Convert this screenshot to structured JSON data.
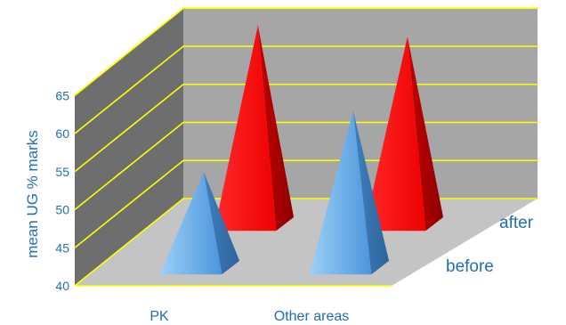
{
  "chart_data": {
    "type": "bar",
    "bar_shape": "pyramid-3d",
    "categories": [
      "PK",
      "Other areas"
    ],
    "series": [
      {
        "name": "before",
        "values": [
          53.5,
          61.5
        ]
      },
      {
        "name": "after",
        "values": [
          67,
          65.5
        ]
      }
    ],
    "ylabel": "mean UG % marks",
    "xlabel": "",
    "title": "",
    "yticks": [
      40,
      45,
      50,
      55,
      60,
      65
    ],
    "ylim": [
      40,
      69
    ],
    "grid": true,
    "colors": {
      "before": "#5fa8ea",
      "after": "#ff0000",
      "back_wall": "#a6a6a6",
      "side_wall": "#6e6e6e",
      "floor": "#c4c4c4",
      "gridlines": "#ffff00",
      "text": "#1f6fb5"
    }
  }
}
